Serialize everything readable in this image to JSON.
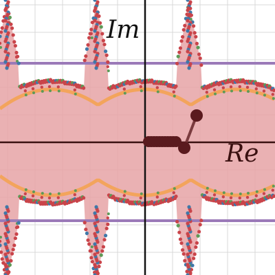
{
  "labels": {
    "imaginary_axis": "Im",
    "real_axis": "Re"
  },
  "colors": {
    "background": "#ffffff",
    "grid": "#d9d9d9",
    "axis": "#111111",
    "region_fill": "#e6a3a6",
    "fractal_red": "#c9444a",
    "fractal_blue": "#3f78a8",
    "fractal_green": "#5d9a57",
    "orange_curve": "#f3a45c",
    "purple_line": "#9b7ab8",
    "marker": "#5a1a1e"
  }
}
